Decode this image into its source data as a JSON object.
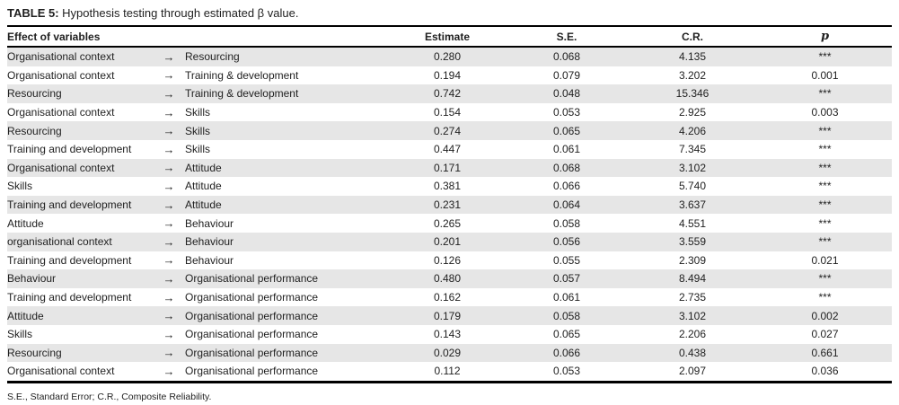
{
  "title": {
    "prefix": "TABLE 5:",
    "text": " Hypothesis testing through estimated β value."
  },
  "table": {
    "arrow_glyph": "→",
    "shaded_row_color": "#e6e6e6",
    "headers": {
      "effect": "Effect of variables",
      "estimate": "Estimate",
      "se": "S.E.",
      "cr": "C.R.",
      "p": "p"
    },
    "rows": [
      {
        "source": "Organisational context",
        "target": "Resourcing",
        "estimate": "0.280",
        "se": "0.068",
        "cr": "4.135",
        "p": "***"
      },
      {
        "source": "Organisational context",
        "target": "Training & development",
        "estimate": "0.194",
        "se": "0.079",
        "cr": "3.202",
        "p": "0.001"
      },
      {
        "source": "Resourcing",
        "target": "Training & development",
        "estimate": "0.742",
        "se": "0.048",
        "cr": "15.346",
        "p": "***"
      },
      {
        "source": "Organisational context",
        "target": "Skills",
        "estimate": "0.154",
        "se": "0.053",
        "cr": "2.925",
        "p": "0.003"
      },
      {
        "source": "Resourcing",
        "target": "Skills",
        "estimate": "0.274",
        "se": "0.065",
        "cr": "4.206",
        "p": "***"
      },
      {
        "source": "Training and development",
        "target": "Skills",
        "estimate": "0.447",
        "se": "0.061",
        "cr": "7.345",
        "p": "***"
      },
      {
        "source": "Organisational context",
        "target": "Attitude",
        "estimate": "0.171",
        "se": "0.068",
        "cr": "3.102",
        "p": "***"
      },
      {
        "source": "Skills",
        "target": "Attitude",
        "estimate": "0.381",
        "se": "0.066",
        "cr": "5.740",
        "p": "***"
      },
      {
        "source": "Training and development",
        "target": "Attitude",
        "estimate": "0.231",
        "se": "0.064",
        "cr": "3.637",
        "p": "***"
      },
      {
        "source": "Attitude",
        "target": "Behaviour",
        "estimate": "0.265",
        "se": "0.058",
        "cr": "4.551",
        "p": "***"
      },
      {
        "source": "organisational context",
        "target": "Behaviour",
        "estimate": "0.201",
        "se": "0.056",
        "cr": "3.559",
        "p": "***"
      },
      {
        "source": "Training and development",
        "target": "Behaviour",
        "estimate": "0.126",
        "se": "0.055",
        "cr": "2.309",
        "p": "0.021"
      },
      {
        "source": "Behaviour",
        "target": "Organisational performance",
        "estimate": "0.480",
        "se": "0.057",
        "cr": "8.494",
        "p": "***"
      },
      {
        "source": "Training and development",
        "target": "Organisational performance",
        "estimate": "0.162",
        "se": "0.061",
        "cr": "2.735",
        "p": "***"
      },
      {
        "source": "Attitude",
        "target": "Organisational performance",
        "estimate": "0.179",
        "se": "0.058",
        "cr": "3.102",
        "p": "0.002"
      },
      {
        "source": "Skills",
        "target": "Organisational performance",
        "estimate": "0.143",
        "se": "0.065",
        "cr": "2.206",
        "p": "0.027"
      },
      {
        "source": "Resourcing",
        "target": "Organisational performance",
        "estimate": "0.029",
        "se": "0.066",
        "cr": "0.438",
        "p": "0.661"
      },
      {
        "source": "Organisational context",
        "target": "Organisational performance",
        "estimate": "0.112",
        "se": "0.053",
        "cr": "2.097",
        "p": "0.036"
      }
    ]
  },
  "footnote": "S.E., Standard Error; C.R., Composite Reliability."
}
